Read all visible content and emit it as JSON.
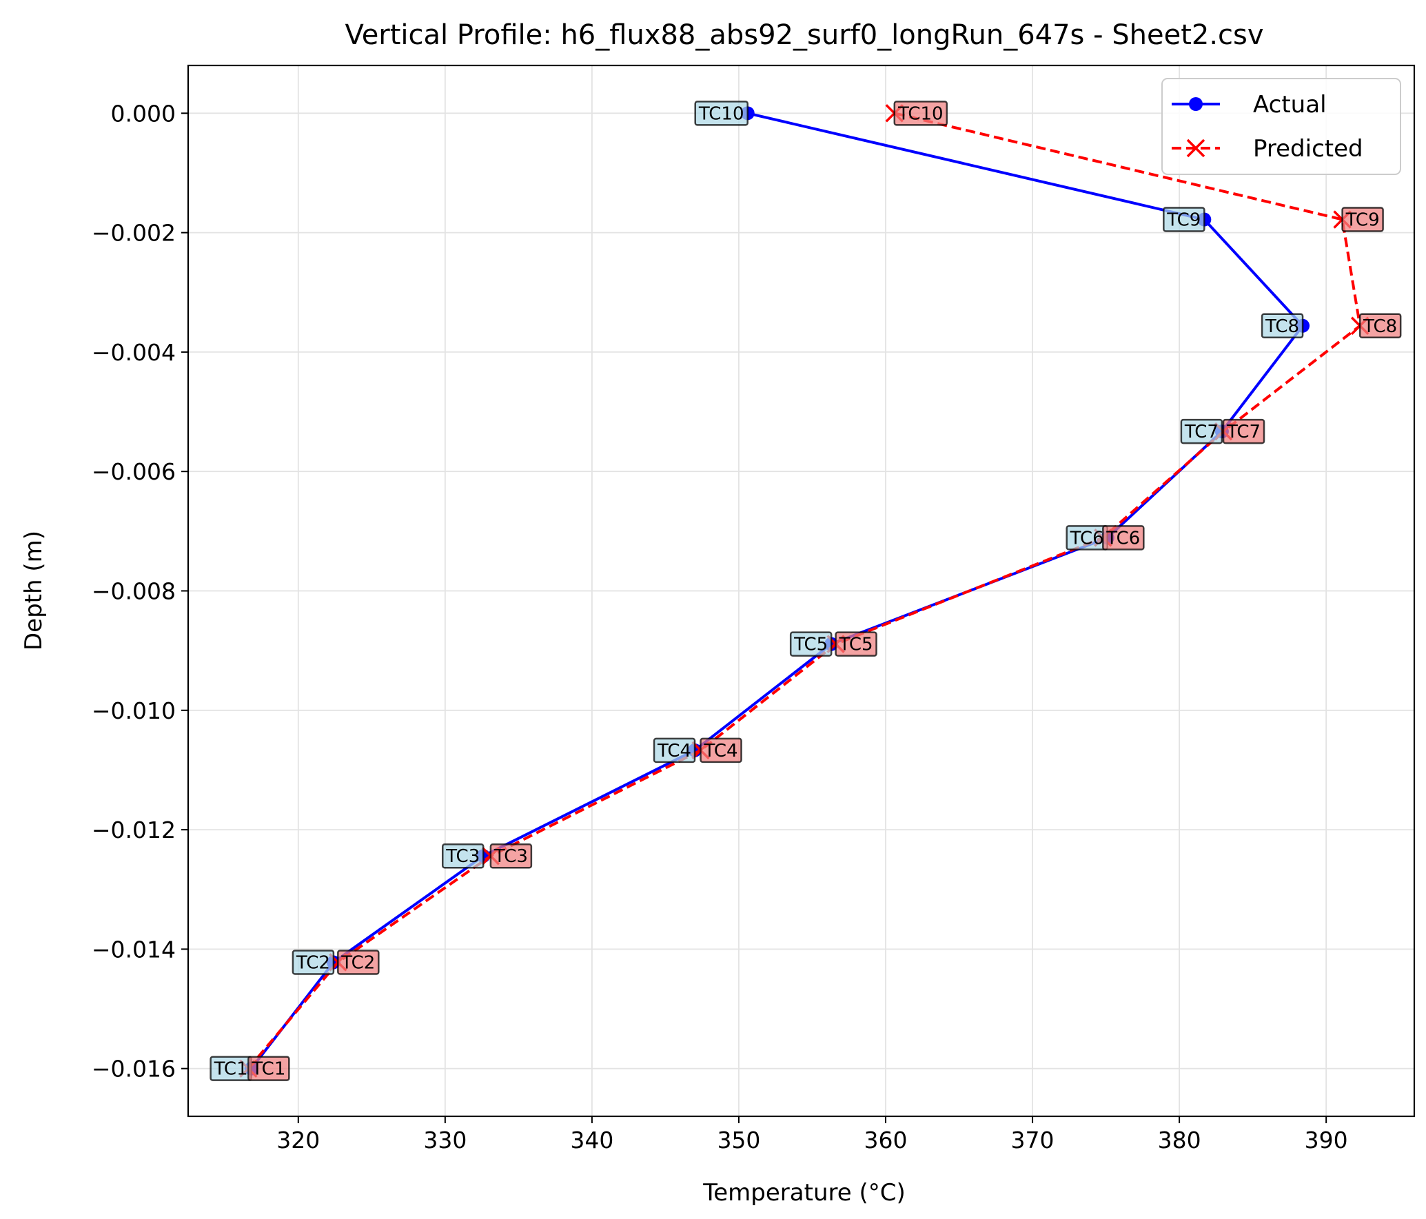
{
  "chart_data": {
    "type": "line",
    "title": "Vertical Profile: h6_flux88_abs92_surf0_longRun_647s - Sheet2.csv",
    "xlabel": "Temperature (°C)",
    "ylabel": "Depth (m)",
    "xlim": [
      312.5,
      396.0
    ],
    "ylim": [
      -0.0168,
      0.0008
    ],
    "xticks": [
      "320",
      "330",
      "340",
      "350",
      "360",
      "370",
      "380",
      "390"
    ],
    "yticks": [
      "0.000",
      "−0.002",
      "−0.004",
      "−0.006",
      "−0.008",
      "−0.010",
      "−0.012",
      "−0.014",
      "−0.016"
    ],
    "grid": true,
    "legend_position": "top-right",
    "series": [
      {
        "name": "Actual",
        "color": "#0000ff",
        "marker": "circle",
        "linestyle": "solid",
        "label_bg": "#add8e6",
        "points": [
          {
            "label": "TC1",
            "x": 316.8,
            "y": -0.016
          },
          {
            "label": "TC2",
            "x": 322.4,
            "y": -0.01422
          },
          {
            "label": "TC3",
            "x": 332.6,
            "y": -0.01244
          },
          {
            "label": "TC4",
            "x": 347.0,
            "y": -0.01067
          },
          {
            "label": "TC5",
            "x": 356.3,
            "y": -0.00889
          },
          {
            "label": "TC6",
            "x": 375.1,
            "y": -0.00711
          },
          {
            "label": "TC7",
            "x": 382.9,
            "y": -0.00533
          },
          {
            "label": "TC8",
            "x": 388.4,
            "y": -0.00356
          },
          {
            "label": "TC9",
            "x": 381.7,
            "y": -0.00178
          },
          {
            "label": "TC10",
            "x": 350.6,
            "y": 0.0
          }
        ]
      },
      {
        "name": "Predicted",
        "color": "#ff0000",
        "marker": "x",
        "linestyle": "dashed",
        "label_bg": "#f08080",
        "points": [
          {
            "label": "TC1",
            "x": 316.6,
            "y": -0.016
          },
          {
            "label": "TC2",
            "x": 322.7,
            "y": -0.01422
          },
          {
            "label": "TC3",
            "x": 333.1,
            "y": -0.01244
          },
          {
            "label": "TC4",
            "x": 347.4,
            "y": -0.01067
          },
          {
            "label": "TC5",
            "x": 356.6,
            "y": -0.00889
          },
          {
            "label": "TC6",
            "x": 374.8,
            "y": -0.00711
          },
          {
            "label": "TC7",
            "x": 383.0,
            "y": -0.00533
          },
          {
            "label": "TC8",
            "x": 392.3,
            "y": -0.00356
          },
          {
            "label": "TC9",
            "x": 391.1,
            "y": -0.00178
          },
          {
            "label": "TC10",
            "x": 360.6,
            "y": 0.0
          }
        ]
      }
    ]
  }
}
